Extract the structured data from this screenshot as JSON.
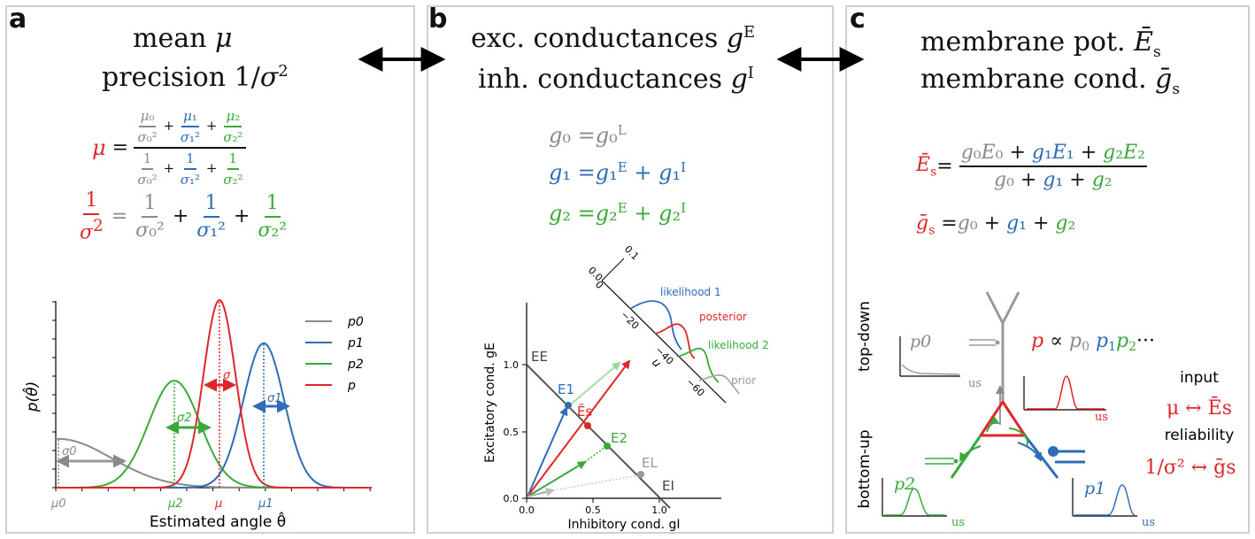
{
  "panel_a": {
    "label": "a",
    "heading_line1": "mean μ",
    "heading_line2": "precision 1/σ²",
    "mu_eq": "μ = (μ₀/σ₀² + μ₁/σ₁² + μ₂/σ₂²) / (1/σ₀² + 1/σ₁² + 1/σ₂²)",
    "prec_eq": "1/σ² = 1/σ₀² + 1/σ₁² + 1/σ₂²",
    "chart": {
      "ylabel": "p(θ̂)",
      "xlabel": "Estimated angle θ̂",
      "legend": [
        "p0",
        "p1",
        "p2",
        "p"
      ],
      "xtick_labels": [
        "μ0",
        "μ2",
        "μ",
        "μ1"
      ],
      "width_labels": [
        "σ0",
        "σ2",
        "σ",
        "σ1"
      ]
    }
  },
  "panel_b": {
    "label": "b",
    "heading_line1": "exc. conductances g^E",
    "heading_line2": "inh. conductances g^I",
    "eq0": "g0 = g0^L",
    "eq1": "g1 = g1^E + g1^I",
    "eq2": "g2 = g2^E + g2^I",
    "chart": {
      "ylabel": "Excitatory cond. gE",
      "xlabel": "Inhibitory cond. gI",
      "xticks": [
        "0.0",
        "0.5",
        "1.0"
      ],
      "yticks": [
        "0.0",
        "0.5",
        "1.0"
      ],
      "points": [
        "E1",
        "Ēs",
        "E2",
        "EL"
      ],
      "line_labels": [
        "EE",
        "EI"
      ],
      "rot_axis_ticks": [
        "0.1",
        "0.0",
        "0",
        "−20",
        "−40",
        "−60"
      ],
      "rot_axis_label": "u",
      "curves": [
        "likelihood 1",
        "posterior",
        "likelihood 2",
        "prior"
      ]
    }
  },
  "panel_c": {
    "label": "c",
    "heading_line1": "membrane pot. Ēs",
    "heading_line2": "membrane cond. ḡs",
    "Es_eq": "Ēs = (g0E0 + g1E1 + g2E2) / (g0 + g1 + g2)",
    "gs_eq": "ḡs = g0 + g1 + g2",
    "top_down": "top-down",
    "bottom_up": "bottom-up",
    "product": "p ∝ p0 p1 p2 ...",
    "input": "input",
    "input_map": "μ ↔ Ēs",
    "reliability": "reliability",
    "reliability_map": "1/σ² ↔ ḡs",
    "inset_labels": [
      "p0",
      "p1",
      "p2"
    ],
    "axis_unit": "us"
  }
}
